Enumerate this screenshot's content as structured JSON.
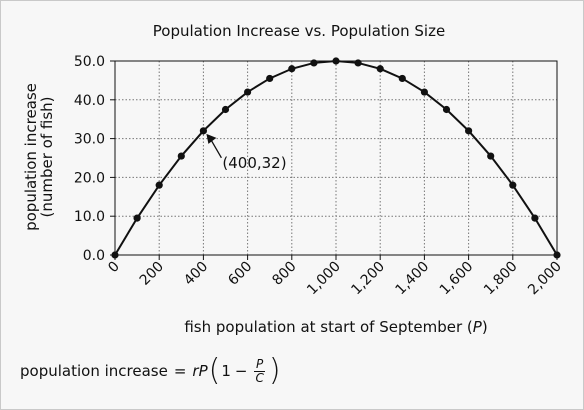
{
  "chart_data": {
    "type": "line",
    "title": "Population Increase vs. Population Size",
    "xlabel_text": "fish population at start of September (",
    "xlabel_var": "P",
    "xlabel_close": ")",
    "ylabel_line1": "population increase",
    "ylabel_line2": "(number of fish)",
    "xlim": [
      0,
      2000
    ],
    "ylim": [
      0,
      50
    ],
    "grid": true,
    "x_ticks": [
      0,
      200,
      400,
      600,
      800,
      1000,
      1200,
      1400,
      1600,
      1800,
      2000
    ],
    "x_tick_labels": [
      "0",
      "200",
      "400",
      "600",
      "800",
      "1,000",
      "1,200",
      "1,400",
      "1,600",
      "1,800",
      "2,000"
    ],
    "y_ticks": [
      0,
      10,
      20,
      30,
      40,
      50
    ],
    "y_tick_labels": [
      "0.0",
      "10.0",
      "20.0",
      "30.0",
      "40.0",
      "50.0"
    ],
    "series": [
      {
        "x": [
          0,
          100,
          200,
          300,
          400,
          500,
          600,
          700,
          800,
          900,
          1000,
          1100,
          1200,
          1300,
          1400,
          1500,
          1600,
          1700,
          1800,
          1900,
          2000
        ],
        "y": [
          0,
          9.5,
          18,
          25.5,
          32,
          37.5,
          42,
          45.5,
          48,
          49.5,
          50,
          49.5,
          48,
          45.5,
          42,
          37.5,
          32,
          25.5,
          18,
          9.5,
          0
        ]
      }
    ],
    "annotation": {
      "text": "(400,32)",
      "x": 400,
      "y": 32
    },
    "color": "#111111"
  },
  "formula": {
    "lhs": "population increase",
    "equals": "=",
    "r": "r",
    "P": "P",
    "open": "(",
    "one": "1",
    "minus": "−",
    "numerator": "P",
    "denominator": "C",
    "close": ")"
  }
}
